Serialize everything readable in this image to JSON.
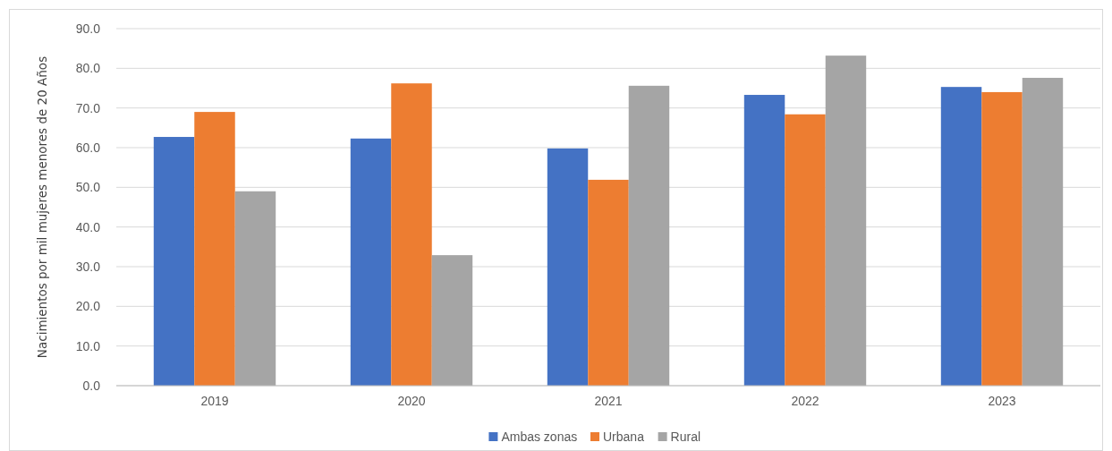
{
  "chart_data": {
    "type": "bar",
    "ylabel": "Nacimientos por mil mujeres menores de 20 Años",
    "categories": [
      "2019",
      "2020",
      "2021",
      "2022",
      "2023"
    ],
    "series": [
      {
        "name": "Ambas zonas",
        "color": "#4472c4",
        "values": [
          62.7,
          62.3,
          59.8,
          73.3,
          75.3
        ]
      },
      {
        "name": "Urbana",
        "color": "#ed7d31",
        "values": [
          69.0,
          76.2,
          51.9,
          68.4,
          74.0
        ]
      },
      {
        "name": "Rural",
        "color": "#a5a5a5",
        "values": [
          49.0,
          32.9,
          75.6,
          83.2,
          77.6
        ]
      }
    ],
    "ylim": [
      0,
      90
    ],
    "yticks": [
      {
        "value": 0,
        "label": "0.0"
      },
      {
        "value": 10,
        "label": "10.0"
      },
      {
        "value": 20,
        "label": "20.0"
      },
      {
        "value": 30,
        "label": "30.0"
      },
      {
        "value": 40,
        "label": "40.0"
      },
      {
        "value": 50,
        "label": "50.0"
      },
      {
        "value": 60,
        "label": "60.0"
      },
      {
        "value": 70,
        "label": "70.0"
      },
      {
        "value": 80,
        "label": "80.0"
      },
      {
        "value": 90,
        "label": "90.0"
      }
    ],
    "grid": "y",
    "legend": "bottom"
  }
}
